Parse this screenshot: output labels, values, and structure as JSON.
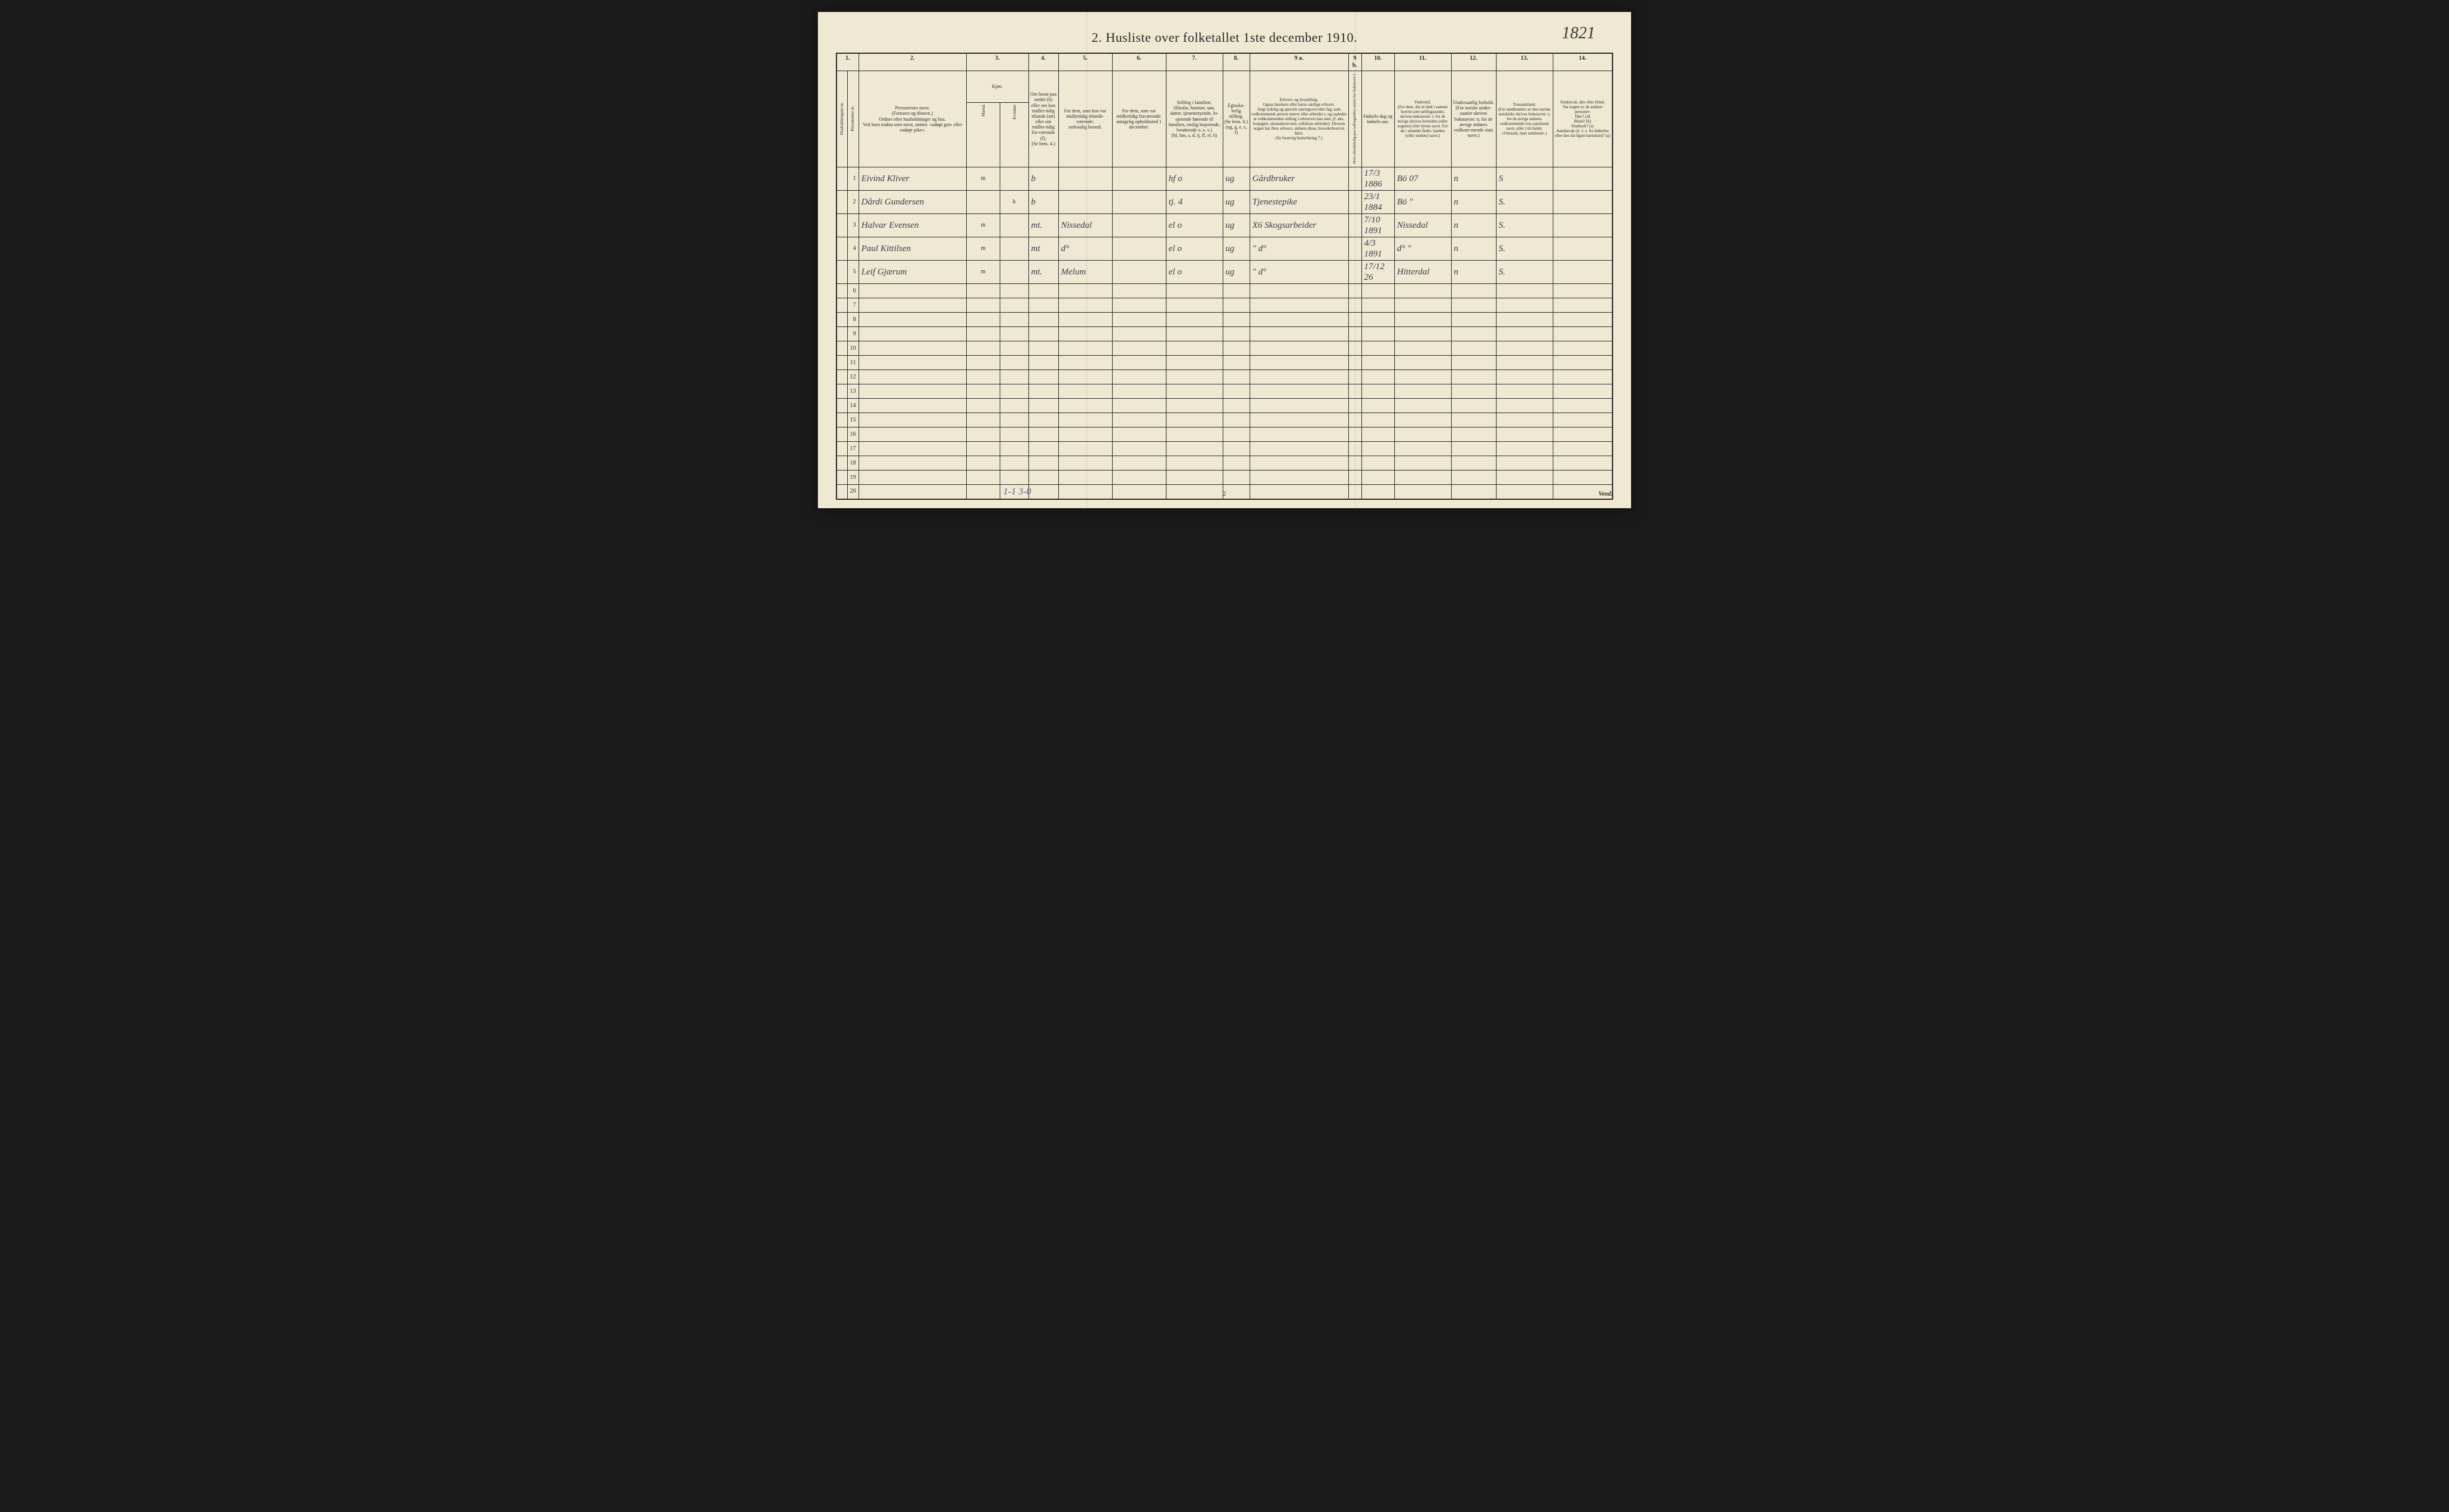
{
  "handwritten_corner": "1821",
  "title": "2.  Husliste over folketallet 1ste december 1910.",
  "columns": {
    "nums": [
      "1.",
      "2.",
      "3.",
      "4.",
      "5.",
      "6.",
      "7.",
      "8.",
      "9 a.",
      "9 b.",
      "10.",
      "11.",
      "12.",
      "13.",
      "14."
    ],
    "c1a": "Husholdningens nr.",
    "c1b": "Personernes nr.",
    "c2": "Personernes navn.\n(Fornavn og tilnavn.)\nOrdnet efter husholdninger og hus.\nVed barn endnu uten navn, sættes: «udøpt gut» eller «udøpt pike».",
    "c3_top": "Kjøn.",
    "c3a": "Mænd.",
    "c3b": "Kvinder.",
    "c3_bot": "m.  k.",
    "c4": "Om bosat paa stedet (b) eller om kun midler-tidig tilstede (mt) eller om midler-tidig fra-værende (f).\n(Se bem. 4.)",
    "c5": "For dem, som kun var midlertidig tilstede-værende:\nsedvanlig bosted.",
    "c6": "For dem, som var midlertidig fraværende:\nantagelig opholdssted 1 december.",
    "c7": "Stilling i familien.\n(Husfar, husmor, søn, datter, tjenestetyende, lo-sjerende hørende til familien, enslig losjerende, besøkende o. s. v.)\n(hf, hm, s, d, tj, fl, el, b)",
    "c8": "Egteska-belig stilling.\n(Se bem. 6.)\n(ug, g, e, s, f)",
    "c9a": "Erhverv og livsstilling.\nOgsaa husmors eller barns særlige erhverv.\nAngi tydelig og specielt næringsvei eller fag, som vedkommende person utøver eller arbeider i, og saaledes at vedkommendes stilling i erhvervet kan sees, (f. eks. forpagter, skomakersvend, cellulose-arbeider). Dersom nogen har flere erhverv, anføres disse, hovederhvervet først.\n(Se forøvrig bemerkning 7.)",
    "c9b": "Hvis arbeidsledig paa tællingstiden sættes her bokstaven l.",
    "c10": "Fødsels-dag og fødsels-aar.",
    "c11": "Fødested.\n(For dem, der er født i samme herred som tællingsstedet, skrives bokstaven: t; for de øvrige skrives herredets (eller sognets) eller byens navn. For de i utlandet fødte: landets (eller stedets) navn.)",
    "c12": "Undersaatlig forhold.\n(For norske under-saatter skrives bokstaven: n; for de øvrige anføres vedkom-mende stats navn.)",
    "c13": "Trossamfund.\n(For medlemmer av den norske statskirke skrives bokstaven: s; for de øvrige anføres vedkommende tros-samfunds navn, eller i til-fælde: «Uttraadt, intet samfund».)",
    "c14": "Sindssvak, døv eller blind.\nVar nogen av de anførte personer:\nDøv?          (d)\nBlind?        (b)\nSindssyk?  (s)\nAandssvak (d. v. s. fra fødselen eller den tid-ligste barndom)?   (a)"
  },
  "rows": [
    {
      "mark": "",
      "hnr": "",
      "pnr": "1",
      "name": "Eivind Kliver",
      "m": "m",
      "k": "",
      "bosat": "b",
      "c5": "",
      "c6": "",
      "c7": "hf  o",
      "c8": "ug",
      "c9a": "Gårdbruker",
      "c9b": "",
      "c10": "17/3 1886",
      "c11": "Bö  07",
      "c12": "n",
      "c13": "S",
      "c14": ""
    },
    {
      "mark": "",
      "hnr": "",
      "pnr": "2",
      "name": "Dårdi Gundersen",
      "m": "",
      "k": "k",
      "bosat": "b",
      "c5": "",
      "c6": "",
      "c7": "tj.  4",
      "c8": "ug",
      "c9a": "Tjenestepike",
      "c9b": "",
      "c10": "23/1 1884",
      "c11": "Bö  \"",
      "c12": "n",
      "c13": "S.",
      "c14": ""
    },
    {
      "mark": "x",
      "hnr": "",
      "pnr": "3",
      "name": "Halvar Evensen",
      "m": "m",
      "k": "",
      "bosat": "mt.",
      "c5": "Nissedal",
      "c6": "",
      "c7": "el  o",
      "c8": "ug",
      "c9a": "X6 Skogsarbeider",
      "c9b": "",
      "c10": "7/10 1891",
      "c11": "Nissedal",
      "c12": "n",
      "c13": "S.",
      "c14": ""
    },
    {
      "mark": "x",
      "hnr": "",
      "pnr": "4",
      "name": "Paul Kittilsen",
      "m": "m",
      "k": "",
      "bosat": "mt",
      "c5": "d°",
      "c6": "",
      "c7": "el  o",
      "c8": "ug",
      "c9a": "\"       d°",
      "c9b": "",
      "c10": "4/3 1891",
      "c11": "d°  \"",
      "c12": "n",
      "c13": "S.",
      "c14": ""
    },
    {
      "mark": "x",
      "hnr": "",
      "pnr": "5",
      "name": "Leif Gjærum",
      "m": "m",
      "k": "",
      "bosat": "mt.",
      "c5": "Melum",
      "c6": "",
      "c7": "el  o",
      "c8": "ug",
      "c9a": "\"       d°",
      "c9b": "",
      "c10": "17/12 26",
      "c11": "Hitterdal",
      "c12": "n",
      "c13": "S.",
      "c14": ""
    }
  ],
  "empty_rows": [
    "6",
    "7",
    "8",
    "9",
    "10",
    "11",
    "12",
    "13",
    "14",
    "15",
    "16",
    "17",
    "18",
    "19",
    "20"
  ],
  "page_number": "2",
  "vend": "Vend!",
  "footer_notes": "1-1        3-0",
  "colors": {
    "paper": "#efe9d3",
    "ink": "#2a2a2a",
    "handwriting": "#3a3a4a",
    "pencil": "#5a5a8a",
    "background": "#1a1a1a"
  },
  "col_widths": {
    "hnr": 18,
    "pnr": 18,
    "name": 180,
    "m": 16,
    "k": 16,
    "bosat": 50,
    "c5": 90,
    "c6": 90,
    "c7": 95,
    "c8": 45,
    "c9a": 165,
    "c9b": 22,
    "c10": 55,
    "c11": 95,
    "c12": 75,
    "c13": 95,
    "c14": 100
  }
}
